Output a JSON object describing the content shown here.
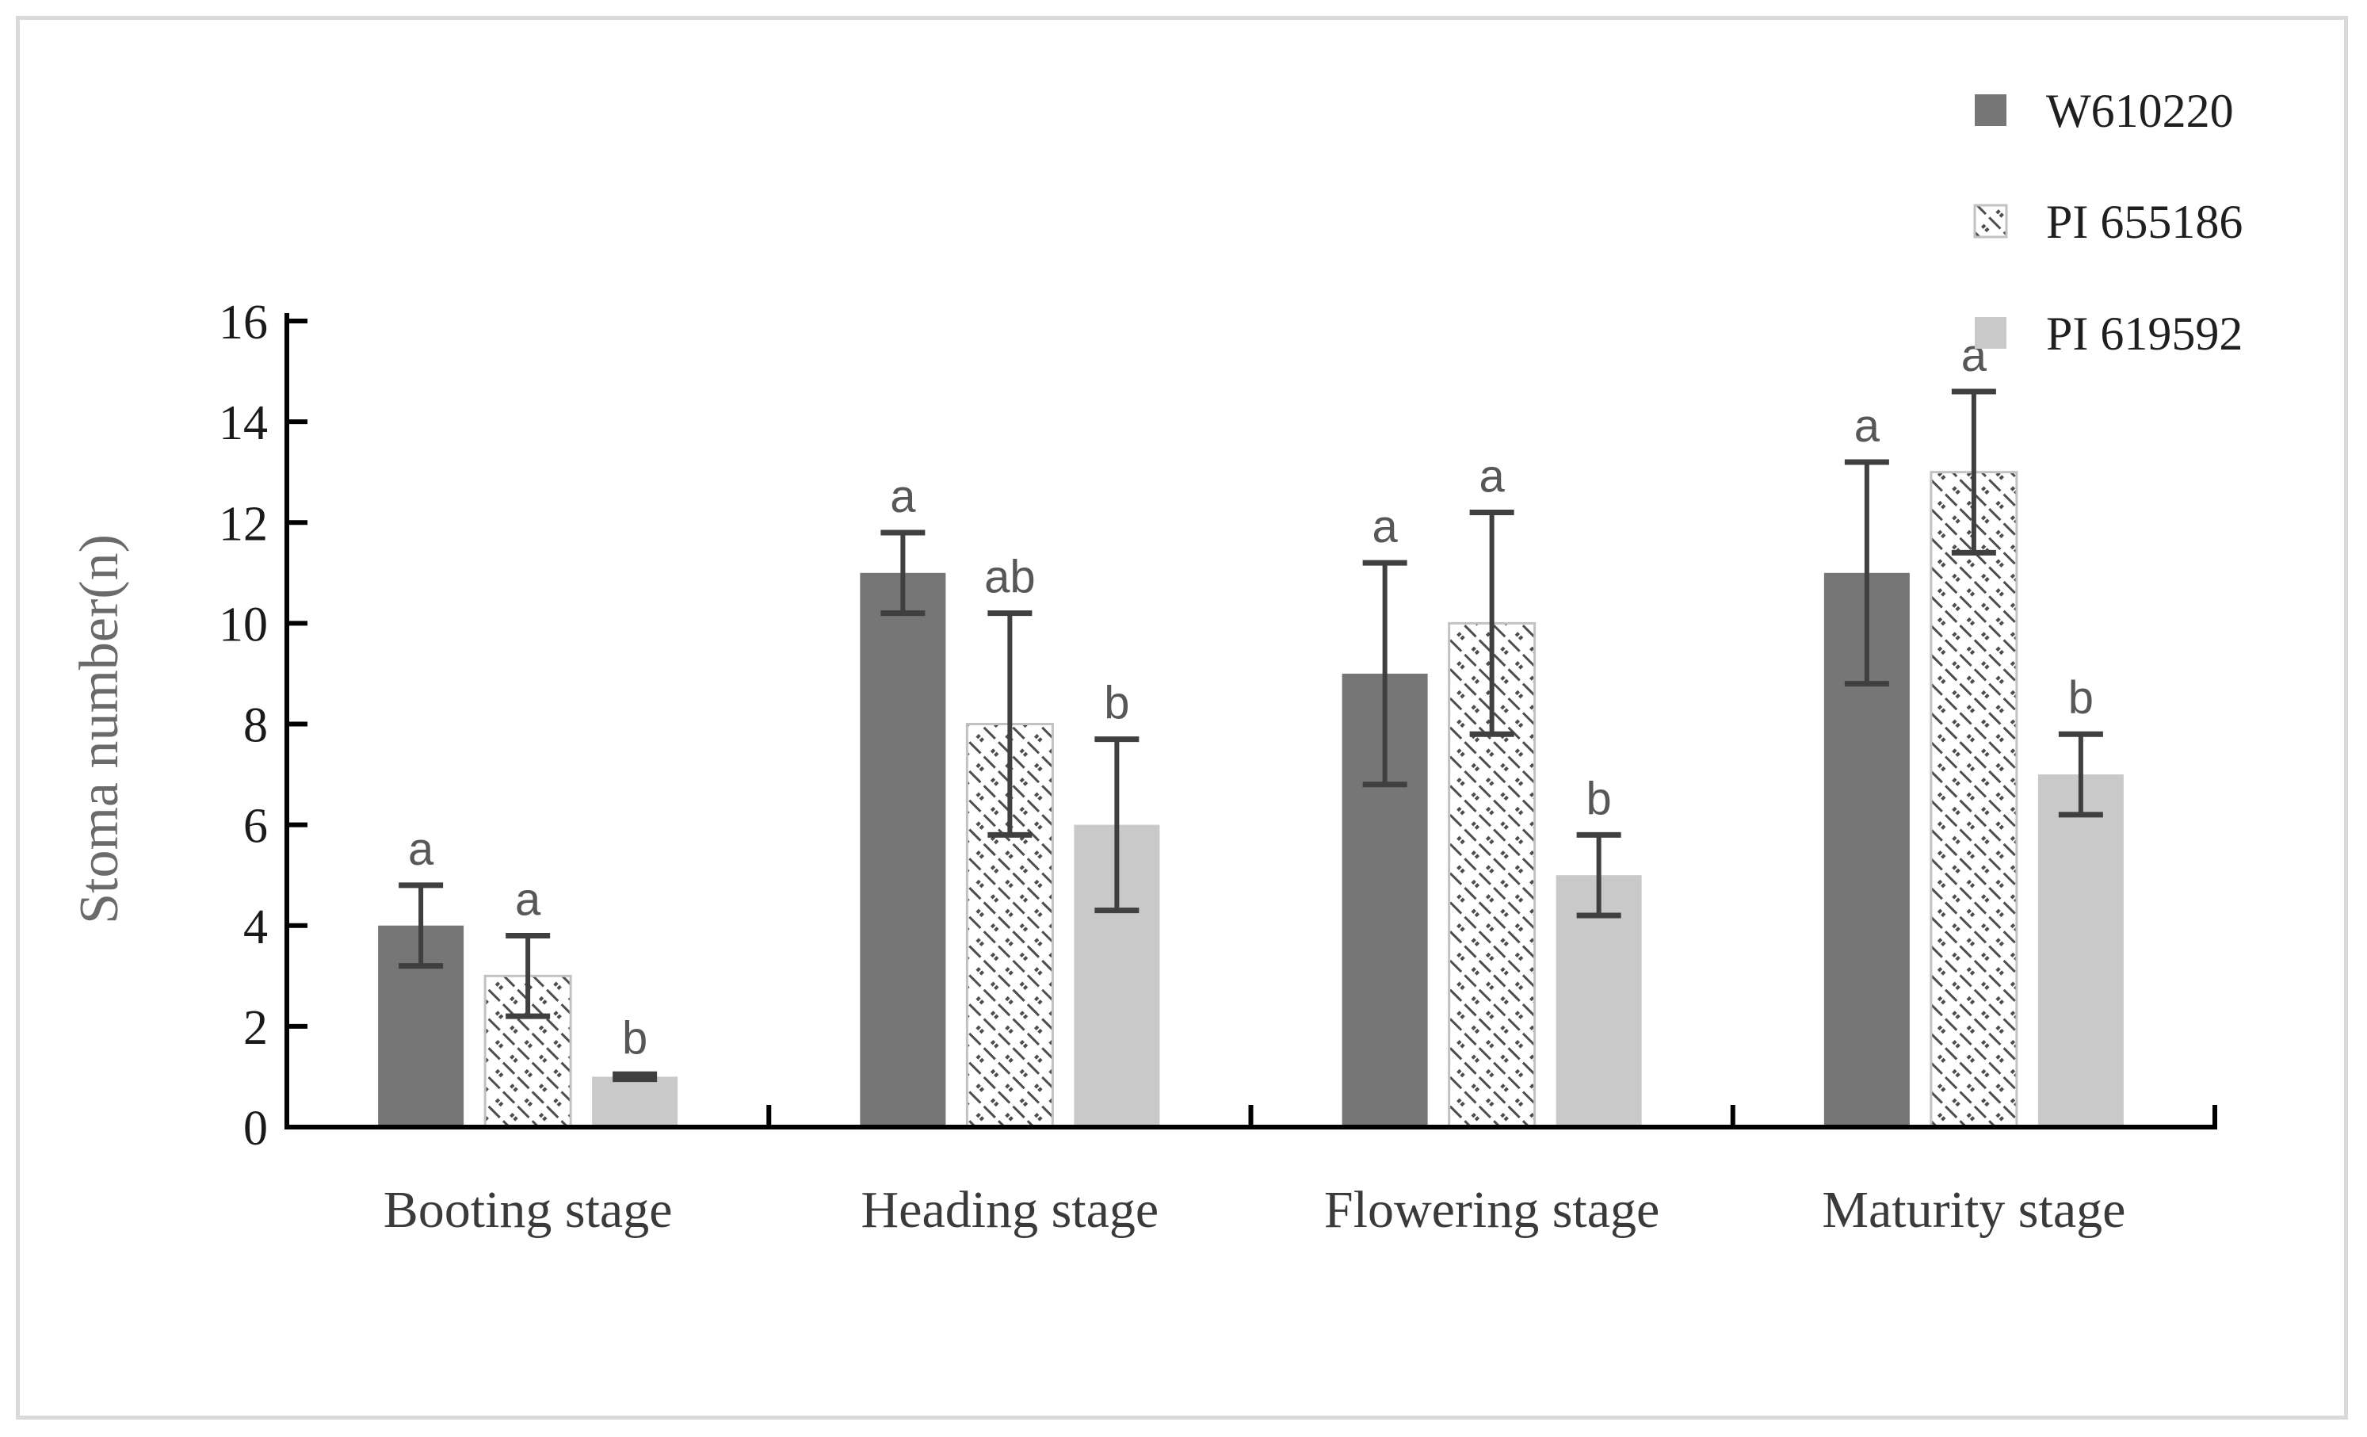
{
  "figure": {
    "background": "#ffffff",
    "frame_border_color": "#d9d9d9"
  },
  "chart_data": {
    "type": "bar",
    "title": "",
    "ylabel": "Stoma number(n)",
    "xlabel": "",
    "ylim": [
      0,
      16
    ],
    "ytick_step": 2,
    "yticks": [
      "0",
      "2",
      "4",
      "6",
      "8",
      "10",
      "12",
      "14",
      "16"
    ],
    "categories": [
      "Booting stage",
      "Heading stage",
      "Flowering stage",
      "Maturity stage"
    ],
    "grid": false,
    "legend_position": "top-right",
    "series": [
      {
        "name": "W610220",
        "pattern": "solid",
        "fill": "#767676",
        "values": [
          4,
          11,
          9,
          11
        ],
        "errors": [
          0.8,
          0.8,
          2.2,
          2.2
        ],
        "sig_letters": [
          "a",
          "a",
          "a",
          "a"
        ]
      },
      {
        "name": "PI 655186",
        "pattern": "diagonal-dash-dot-hatch",
        "fill": "#ffffff",
        "hatch_color": "#4d4d4d",
        "border": "#c2c2c2",
        "values": [
          3,
          8,
          10,
          13
        ],
        "errors": [
          0.8,
          2.2,
          2.2,
          1.6
        ],
        "sig_letters": [
          "a",
          "ab",
          "a",
          "a"
        ]
      },
      {
        "name": "PI 619592",
        "pattern": "solid",
        "fill": "#c9c9c9",
        "values": [
          1,
          6,
          5,
          7
        ],
        "errors": [
          0.05,
          1.7,
          0.8,
          0.8
        ],
        "sig_letters": [
          "b",
          "b",
          "b",
          "b"
        ]
      }
    ],
    "styles": {
      "error_bar_color": "#3f3f3f",
      "sig_letter_color": "#575757",
      "axis_color": "#000000",
      "tick_label_color": "#1a1a1a",
      "category_label_color": "#3a3a3a",
      "ylabel_color": "#6a6a6a",
      "legend_text_color": "#1f1f1f"
    }
  }
}
